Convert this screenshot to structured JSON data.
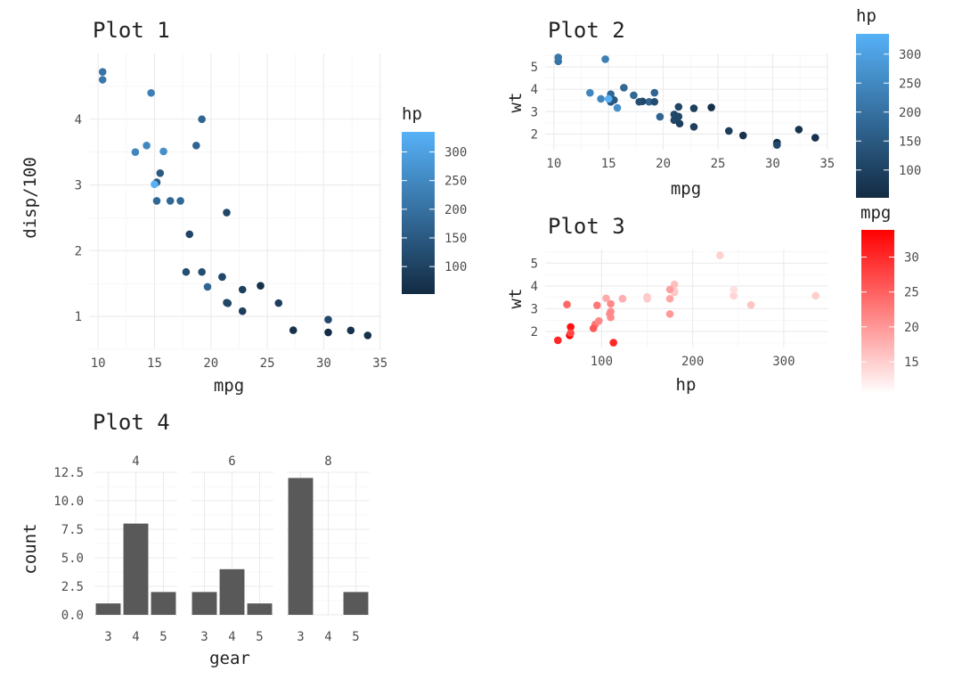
{
  "chart_data": [
    {
      "id": "p1",
      "type": "scatter",
      "title": "Plot 1",
      "xlabel": "mpg",
      "ylabel": "disp/100",
      "xlim": [
        9.2,
        35.1
      ],
      "ylim": [
        0.5,
        5.0
      ],
      "xticks": [
        10,
        15,
        20,
        25,
        30,
        35
      ],
      "yticks": [
        1,
        2,
        3,
        4
      ],
      "color_by": "hp",
      "legend": {
        "title": "hp",
        "ticks": [
          100,
          150,
          200,
          250,
          300
        ],
        "range": [
          52,
          335
        ],
        "low": "#132B43",
        "high": "#56B1F7"
      },
      "points": [
        {
          "x": 21.0,
          "y": 1.6,
          "c": 110
        },
        {
          "x": 21.0,
          "y": 1.6,
          "c": 110
        },
        {
          "x": 22.8,
          "y": 1.08,
          "c": 93
        },
        {
          "x": 21.4,
          "y": 2.58,
          "c": 110
        },
        {
          "x": 18.7,
          "y": 3.6,
          "c": 175
        },
        {
          "x": 18.1,
          "y": 2.25,
          "c": 105
        },
        {
          "x": 14.3,
          "y": 3.6,
          "c": 245
        },
        {
          "x": 24.4,
          "y": 1.467,
          "c": 62
        },
        {
          "x": 22.8,
          "y": 1.408,
          "c": 95
        },
        {
          "x": 19.2,
          "y": 1.676,
          "c": 123
        },
        {
          "x": 17.8,
          "y": 1.676,
          "c": 123
        },
        {
          "x": 16.4,
          "y": 2.758,
          "c": 180
        },
        {
          "x": 17.3,
          "y": 2.758,
          "c": 180
        },
        {
          "x": 15.2,
          "y": 2.758,
          "c": 180
        },
        {
          "x": 10.4,
          "y": 4.72,
          "c": 205
        },
        {
          "x": 10.4,
          "y": 4.6,
          "c": 215
        },
        {
          "x": 14.7,
          "y": 4.4,
          "c": 230
        },
        {
          "x": 32.4,
          "y": 0.787,
          "c": 66
        },
        {
          "x": 30.4,
          "y": 0.757,
          "c": 52
        },
        {
          "x": 33.9,
          "y": 0.711,
          "c": 65
        },
        {
          "x": 21.5,
          "y": 1.201,
          "c": 97
        },
        {
          "x": 15.5,
          "y": 3.18,
          "c": 150
        },
        {
          "x": 15.2,
          "y": 3.04,
          "c": 150
        },
        {
          "x": 13.3,
          "y": 3.5,
          "c": 245
        },
        {
          "x": 19.2,
          "y": 4.0,
          "c": 175
        },
        {
          "x": 27.3,
          "y": 0.79,
          "c": 66
        },
        {
          "x": 26.0,
          "y": 1.203,
          "c": 91
        },
        {
          "x": 30.4,
          "y": 0.951,
          "c": 113
        },
        {
          "x": 15.8,
          "y": 3.51,
          "c": 264
        },
        {
          "x": 19.7,
          "y": 1.45,
          "c": 175
        },
        {
          "x": 15.0,
          "y": 3.01,
          "c": 335
        },
        {
          "x": 21.4,
          "y": 1.21,
          "c": 109
        }
      ]
    },
    {
      "id": "p2",
      "type": "scatter",
      "title": "Plot 2",
      "xlabel": "mpg",
      "ylabel": "wt",
      "xlim": [
        9.2,
        35.1
      ],
      "ylim": [
        1.3,
        5.6
      ],
      "xticks": [
        10,
        15,
        20,
        25,
        30,
        35
      ],
      "yticks": [
        2,
        3,
        4,
        5
      ],
      "color_by": "hp",
      "legend": {
        "title": "hp",
        "ticks": [
          100,
          150,
          200,
          250,
          300
        ],
        "range": [
          52,
          335
        ],
        "low": "#132B43",
        "high": "#56B1F7"
      },
      "points": [
        {
          "x": 21.0,
          "y": 2.62,
          "c": 110
        },
        {
          "x": 21.0,
          "y": 2.875,
          "c": 110
        },
        {
          "x": 22.8,
          "y": 2.32,
          "c": 93
        },
        {
          "x": 21.4,
          "y": 3.215,
          "c": 110
        },
        {
          "x": 18.7,
          "y": 3.44,
          "c": 175
        },
        {
          "x": 18.1,
          "y": 3.46,
          "c": 105
        },
        {
          "x": 14.3,
          "y": 3.57,
          "c": 245
        },
        {
          "x": 24.4,
          "y": 3.19,
          "c": 62
        },
        {
          "x": 22.8,
          "y": 3.15,
          "c": 95
        },
        {
          "x": 19.2,
          "y": 3.44,
          "c": 123
        },
        {
          "x": 17.8,
          "y": 3.44,
          "c": 123
        },
        {
          "x": 16.4,
          "y": 4.07,
          "c": 180
        },
        {
          "x": 17.3,
          "y": 3.73,
          "c": 180
        },
        {
          "x": 15.2,
          "y": 3.78,
          "c": 180
        },
        {
          "x": 10.4,
          "y": 5.25,
          "c": 205
        },
        {
          "x": 10.4,
          "y": 5.424,
          "c": 215
        },
        {
          "x": 14.7,
          "y": 5.345,
          "c": 230
        },
        {
          "x": 32.4,
          "y": 2.2,
          "c": 66
        },
        {
          "x": 30.4,
          "y": 1.615,
          "c": 52
        },
        {
          "x": 33.9,
          "y": 1.835,
          "c": 65
        },
        {
          "x": 21.5,
          "y": 2.465,
          "c": 97
        },
        {
          "x": 15.5,
          "y": 3.52,
          "c": 150
        },
        {
          "x": 15.2,
          "y": 3.435,
          "c": 150
        },
        {
          "x": 13.3,
          "y": 3.84,
          "c": 245
        },
        {
          "x": 19.2,
          "y": 3.845,
          "c": 175
        },
        {
          "x": 27.3,
          "y": 1.935,
          "c": 66
        },
        {
          "x": 26.0,
          "y": 2.14,
          "c": 91
        },
        {
          "x": 30.4,
          "y": 1.513,
          "c": 113
        },
        {
          "x": 15.8,
          "y": 3.17,
          "c": 264
        },
        {
          "x": 19.7,
          "y": 2.77,
          "c": 175
        },
        {
          "x": 15.0,
          "y": 3.57,
          "c": 335
        },
        {
          "x": 21.4,
          "y": 2.78,
          "c": 109
        }
      ]
    },
    {
      "id": "p3",
      "type": "scatter",
      "title": "Plot 3",
      "xlabel": "hp",
      "ylabel": "wt",
      "xlim": [
        38,
        349
      ],
      "ylim": [
        1.3,
        5.6
      ],
      "xticks": [
        100,
        200,
        300
      ],
      "yticks": [
        2,
        3,
        4,
        5
      ],
      "color_by": "mpg",
      "legend": {
        "title": "mpg",
        "ticks": [
          15,
          20,
          25,
          30
        ],
        "range": [
          10.4,
          33.9
        ],
        "low": "#FFFFFF",
        "high": "#FF0000"
      },
      "points": [
        {
          "x": 110,
          "y": 2.62,
          "c": 21.0
        },
        {
          "x": 110,
          "y": 2.875,
          "c": 21.0
        },
        {
          "x": 93,
          "y": 2.32,
          "c": 22.8
        },
        {
          "x": 110,
          "y": 3.215,
          "c": 21.4
        },
        {
          "x": 175,
          "y": 3.44,
          "c": 18.7
        },
        {
          "x": 105,
          "y": 3.46,
          "c": 18.1
        },
        {
          "x": 245,
          "y": 3.57,
          "c": 14.3
        },
        {
          "x": 62,
          "y": 3.19,
          "c": 24.4
        },
        {
          "x": 95,
          "y": 3.15,
          "c": 22.8
        },
        {
          "x": 123,
          "y": 3.44,
          "c": 19.2
        },
        {
          "x": 123,
          "y": 3.44,
          "c": 17.8
        },
        {
          "x": 180,
          "y": 4.07,
          "c": 16.4
        },
        {
          "x": 180,
          "y": 3.73,
          "c": 17.3
        },
        {
          "x": 180,
          "y": 3.78,
          "c": 15.2
        },
        {
          "x": 205,
          "y": 5.25,
          "c": 10.4
        },
        {
          "x": 215,
          "y": 5.424,
          "c": 10.4
        },
        {
          "x": 230,
          "y": 5.345,
          "c": 14.7
        },
        {
          "x": 66,
          "y": 2.2,
          "c": 32.4
        },
        {
          "x": 52,
          "y": 1.615,
          "c": 30.4
        },
        {
          "x": 65,
          "y": 1.835,
          "c": 33.9
        },
        {
          "x": 97,
          "y": 2.465,
          "c": 21.5
        },
        {
          "x": 150,
          "y": 3.52,
          "c": 15.5
        },
        {
          "x": 150,
          "y": 3.435,
          "c": 15.2
        },
        {
          "x": 245,
          "y": 3.84,
          "c": 13.3
        },
        {
          "x": 175,
          "y": 3.845,
          "c": 19.2
        },
        {
          "x": 66,
          "y": 1.935,
          "c": 27.3
        },
        {
          "x": 91,
          "y": 2.14,
          "c": 26.0
        },
        {
          "x": 113,
          "y": 1.513,
          "c": 30.4
        },
        {
          "x": 264,
          "y": 3.17,
          "c": 15.8
        },
        {
          "x": 175,
          "y": 2.77,
          "c": 19.7
        },
        {
          "x": 335,
          "y": 3.57,
          "c": 15.0
        },
        {
          "x": 109,
          "y": 2.78,
          "c": 21.4
        }
      ]
    },
    {
      "id": "p4",
      "type": "bar",
      "title": "Plot 4",
      "xlabel": "gear",
      "ylabel": "count",
      "ylim": [
        0,
        12.5
      ],
      "yticks": [
        "0.0",
        "2.5",
        "5.0",
        "7.5",
        "10.0",
        "12.5"
      ],
      "categories": [
        "3",
        "4",
        "5"
      ],
      "facets": [
        {
          "strip": "4",
          "values": [
            1,
            8,
            2
          ]
        },
        {
          "strip": "6",
          "values": [
            2,
            4,
            1
          ]
        },
        {
          "strip": "8",
          "values": [
            12,
            0,
            2
          ]
        }
      ]
    }
  ]
}
